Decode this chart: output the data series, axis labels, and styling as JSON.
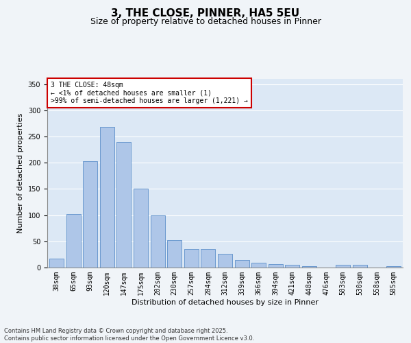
{
  "title": "3, THE CLOSE, PINNER, HA5 5EU",
  "subtitle": "Size of property relative to detached houses in Pinner",
  "xlabel": "Distribution of detached houses by size in Pinner",
  "ylabel": "Number of detached properties",
  "categories": [
    "38sqm",
    "65sqm",
    "93sqm",
    "120sqm",
    "147sqm",
    "175sqm",
    "202sqm",
    "230sqm",
    "257sqm",
    "284sqm",
    "312sqm",
    "339sqm",
    "366sqm",
    "394sqm",
    "421sqm",
    "448sqm",
    "476sqm",
    "503sqm",
    "530sqm",
    "558sqm",
    "585sqm"
  ],
  "values": [
    17,
    102,
    203,
    268,
    240,
    151,
    100,
    52,
    35,
    35,
    26,
    15,
    9,
    7,
    5,
    3,
    0,
    5,
    5,
    0,
    2
  ],
  "bar_color": "#aec6e8",
  "bar_edge_color": "#5b8fc9",
  "annotation_text": "3 THE CLOSE: 48sqm\n← <1% of detached houses are smaller (1)\n>99% of semi-detached houses are larger (1,221) →",
  "annotation_box_color": "#ffffff",
  "annotation_box_edge_color": "#cc0000",
  "background_color": "#dce8f5",
  "fig_background_color": "#f0f4f8",
  "ylim": [
    0,
    360
  ],
  "yticks": [
    0,
    50,
    100,
    150,
    200,
    250,
    300,
    350
  ],
  "footer_text": "Contains HM Land Registry data © Crown copyright and database right 2025.\nContains public sector information licensed under the Open Government Licence v3.0.",
  "title_fontsize": 11,
  "subtitle_fontsize": 9,
  "xlabel_fontsize": 8,
  "ylabel_fontsize": 8,
  "annotation_fontsize": 7,
  "footer_fontsize": 6,
  "tick_fontsize": 7
}
